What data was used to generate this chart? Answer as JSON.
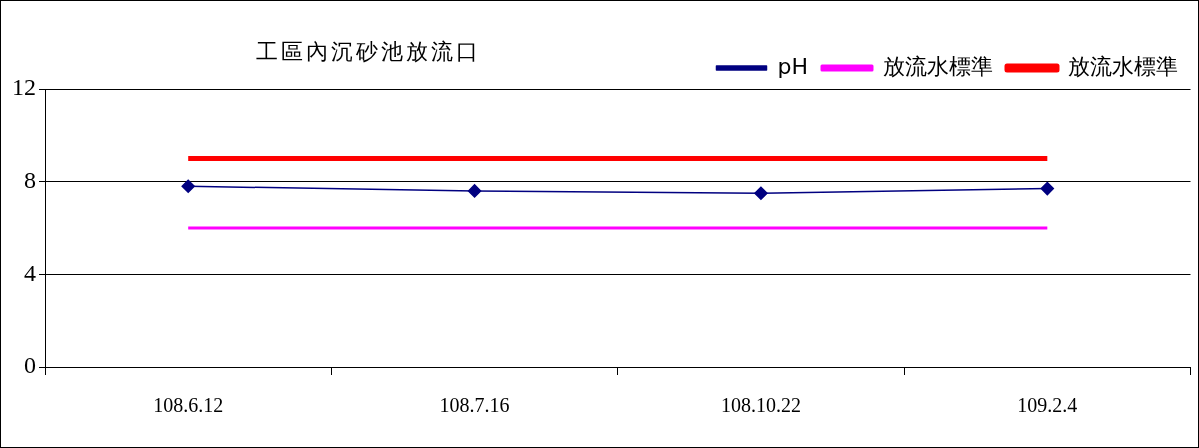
{
  "chart_data": {
    "type": "line",
    "title": "工區內沉砂池放流口",
    "categories": [
      "108.6.12",
      "108.7.16",
      "108.10.22",
      "109.2.4"
    ],
    "series": [
      {
        "name": "pH",
        "color": "#000080",
        "values": [
          7.8,
          7.6,
          7.5,
          7.7
        ],
        "marker": "diamond"
      },
      {
        "name": "放流水標準",
        "color": "#ff00ff",
        "values": [
          6,
          6,
          6,
          6
        ],
        "marker": "none"
      },
      {
        "name": "放流水標準",
        "color": "#ff0000",
        "values": [
          9,
          9,
          9,
          9
        ],
        "marker": "none"
      }
    ],
    "ylim": [
      0,
      12
    ],
    "yticks": [
      0,
      4,
      8,
      12
    ],
    "grid": "y",
    "legend": "top right"
  }
}
